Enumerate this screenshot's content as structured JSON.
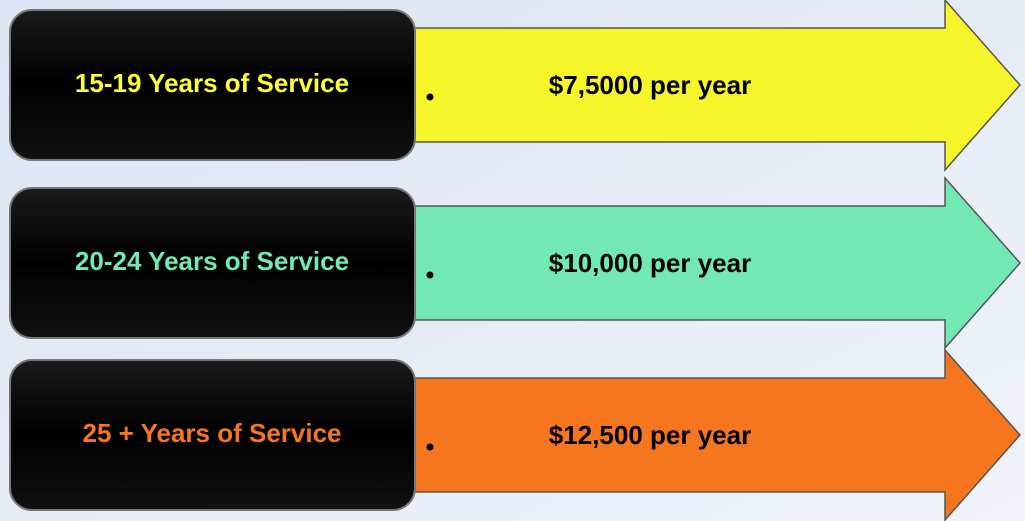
{
  "rows": [
    {
      "label": "15-19 Years of Service",
      "amount": "$7,5000 per year",
      "color": "#f5f52a",
      "text_color": "#ffff33"
    },
    {
      "label": "20-24 Years of Service",
      "amount": "$10,000 per year",
      "color": "#72e8b4",
      "text_color": "#72e8b4"
    },
    {
      "label": "25 + Years of Service",
      "amount": "$12,500 per year",
      "color": "#f5761f",
      "text_color": "#f5761f"
    }
  ]
}
